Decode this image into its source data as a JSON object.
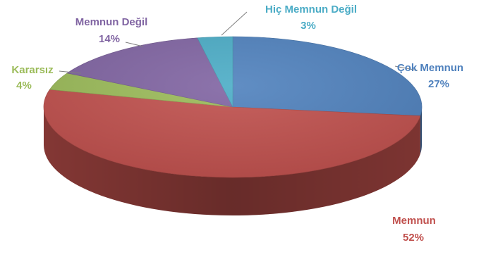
{
  "chart_data": {
    "type": "pie",
    "title": "",
    "series": [
      {
        "name": "Çok Memnun",
        "value": 27,
        "label": "27%",
        "color": "#4F81BD"
      },
      {
        "name": "Memnun",
        "value": 52,
        "label": "52%",
        "color": "#C0504D"
      },
      {
        "name": "Kararsız",
        "value": 4,
        "label": "4%",
        "color": "#9BBB59"
      },
      {
        "name": "Memnun Değil",
        "value": 14,
        "label": "14%",
        "color": "#8064A2"
      },
      {
        "name": "Hiç Memnun Değil",
        "value": 3,
        "label": "3%",
        "color": "#4BACC6"
      }
    ],
    "legend": "none",
    "style": "3d"
  }
}
